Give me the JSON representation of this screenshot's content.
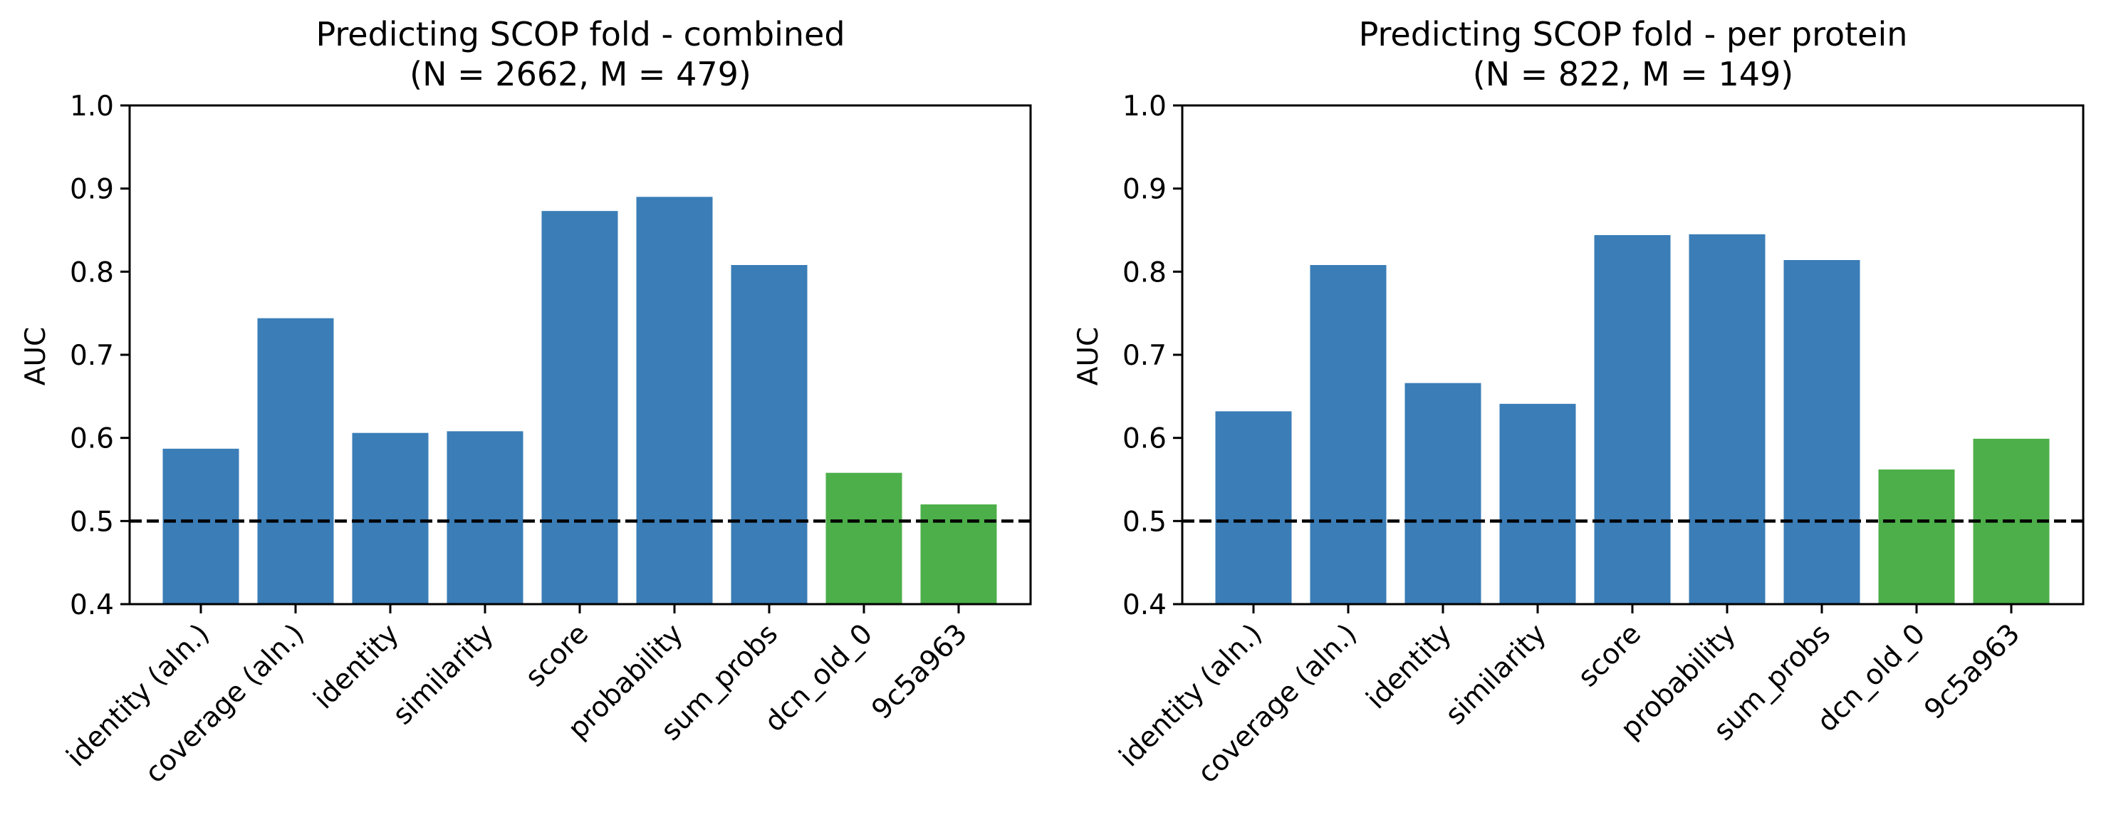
{
  "chart_data": [
    {
      "type": "bar",
      "title": "Predicting SCOP fold - combined",
      "subtitle": "(N = 2662, M = 479)",
      "xlabel": "",
      "ylabel": "AUC",
      "ylim": [
        0.4,
        1.0
      ],
      "yticks": [
        "0.4",
        "0.5",
        "0.6",
        "0.7",
        "0.8",
        "0.9",
        "1.0"
      ],
      "categories": [
        "identity (aln.)",
        "coverage (aln.)",
        "identity",
        "similarity",
        "score",
        "probability",
        "sum_probs",
        "dcn_old_0",
        "9c5a963"
      ],
      "values": [
        0.587,
        0.744,
        0.606,
        0.608,
        0.873,
        0.89,
        0.808,
        0.558,
        0.52
      ],
      "bar_colors": [
        "#3A7DB7",
        "#3A7DB7",
        "#3A7DB7",
        "#3A7DB7",
        "#3A7DB7",
        "#3A7DB7",
        "#3A7DB7",
        "#4DAF4A",
        "#4DAF4A"
      ],
      "reference_line": {
        "y": 0.5,
        "style": "dashed",
        "color": "#000000"
      },
      "grid": false,
      "legend": "none"
    },
    {
      "type": "bar",
      "title": "Predicting SCOP fold - per protein",
      "subtitle": "(N = 822, M = 149)",
      "xlabel": "",
      "ylabel": "AUC",
      "ylim": [
        0.4,
        1.0
      ],
      "yticks": [
        "0.4",
        "0.5",
        "0.6",
        "0.7",
        "0.8",
        "0.9",
        "1.0"
      ],
      "categories": [
        "identity (aln.)",
        "coverage (aln.)",
        "identity",
        "similarity",
        "score",
        "probability",
        "sum_probs",
        "dcn_old_0",
        "9c5a963"
      ],
      "values": [
        0.632,
        0.808,
        0.666,
        0.641,
        0.844,
        0.845,
        0.814,
        0.562,
        0.599
      ],
      "bar_colors": [
        "#3A7DB7",
        "#3A7DB7",
        "#3A7DB7",
        "#3A7DB7",
        "#3A7DB7",
        "#3A7DB7",
        "#3A7DB7",
        "#4DAF4A",
        "#4DAF4A"
      ],
      "reference_line": {
        "y": 0.5,
        "style": "dashed",
        "color": "#000000"
      },
      "grid": false,
      "legend": "none"
    }
  ]
}
